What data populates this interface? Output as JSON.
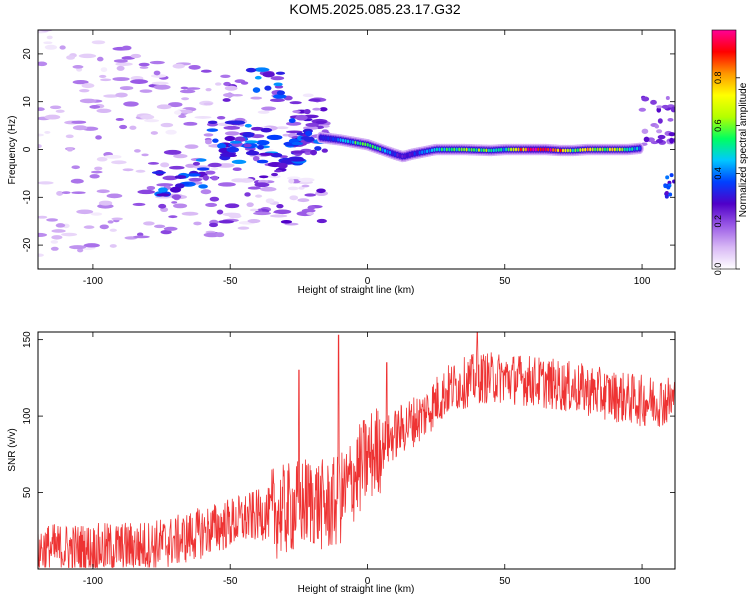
{
  "figure": {
    "title": "KOM5.2025.085.23.17.G32"
  },
  "chart_data": [
    {
      "type": "heatmap",
      "xlabel": "Height of straight line (km)",
      "ylabel": "Frequency (Hz)",
      "xlim": [
        -120,
        112
      ],
      "ylim": [
        -25,
        25
      ],
      "xticks": [
        -100,
        -50,
        0,
        50,
        100
      ],
      "yticks": [
        -20,
        -10,
        0,
        10,
        20
      ],
      "colorbar": {
        "label": "Normalized spectral amplitude",
        "range": [
          0,
          1
        ],
        "ticks": [
          0.0,
          0.2,
          0.4,
          0.6,
          0.8
        ],
        "tick_labels": [
          "0.0",
          "0.2",
          "0.4",
          "0.6",
          "0.8"
        ],
        "colors": [
          "#ffffff",
          "#d8b8f5",
          "#9a5ae6",
          "#5000c8",
          "#0040ff",
          "#00c8ff",
          "#00ff60",
          "#b4ff00",
          "#ffff00",
          "#ff9600",
          "#ff0000",
          "#ff0096"
        ]
      },
      "ridge": {
        "x": [
          -17,
          -10,
          -5,
          0,
          5,
          10,
          13,
          16,
          25,
          35,
          45,
          50,
          55,
          60,
          65,
          70,
          75,
          80,
          85,
          90,
          95,
          100
        ],
        "y": [
          2.5,
          2.0,
          1.5,
          1.0,
          0.0,
          -1.0,
          -1.5,
          -1.0,
          0.0,
          0.0,
          -0.2,
          0.0,
          0.0,
          0.0,
          0.0,
          -0.2,
          -0.2,
          0.0,
          0.0,
          0.0,
          0.0,
          0.3
        ],
        "amplitude": [
          0.3,
          0.4,
          0.5,
          0.65,
          0.5,
          0.3,
          0.25,
          0.3,
          0.5,
          0.6,
          0.55,
          0.45,
          0.75,
          0.9,
          0.95,
          0.8,
          0.55,
          0.75,
          0.6,
          0.7,
          0.55,
          0.35
        ]
      },
      "scatter_region": {
        "x_range": [
          -120,
          -15
        ],
        "y_range": [
          -25,
          25
        ],
        "amplitude_range": [
          0.02,
          0.25
        ]
      }
    },
    {
      "type": "line",
      "xlabel": "Height of straight line (km)",
      "ylabel": "SNR (v/v)",
      "xlim": [
        -120,
        112
      ],
      "ylim": [
        0,
        155
      ],
      "xticks": [
        -100,
        -50,
        0,
        50,
        100
      ],
      "yticks": [
        50,
        100,
        150
      ],
      "color": "#ee3333",
      "trend": {
        "x": [
          -120,
          -100,
          -80,
          -70,
          -60,
          -50,
          -40,
          -30,
          -25,
          -20,
          -15,
          -10,
          -5,
          0,
          5,
          10,
          15,
          20,
          25,
          30,
          40,
          50,
          60,
          70,
          80,
          90,
          100,
          112
        ],
        "y": [
          13,
          13,
          15,
          18,
          24,
          30,
          35,
          38,
          42,
          45,
          40,
          45,
          60,
          72,
          80,
          88,
          95,
          100,
          110,
          118,
          125,
          125,
          123,
          120,
          117,
          113,
          110,
          110
        ]
      },
      "noise_amplitude": 17,
      "peaks": [
        {
          "x": -10.5,
          "y": 153
        },
        {
          "x": 40,
          "y": 155
        },
        {
          "x": -25,
          "y": 130
        },
        {
          "x": 7,
          "y": 135
        }
      ]
    }
  ]
}
